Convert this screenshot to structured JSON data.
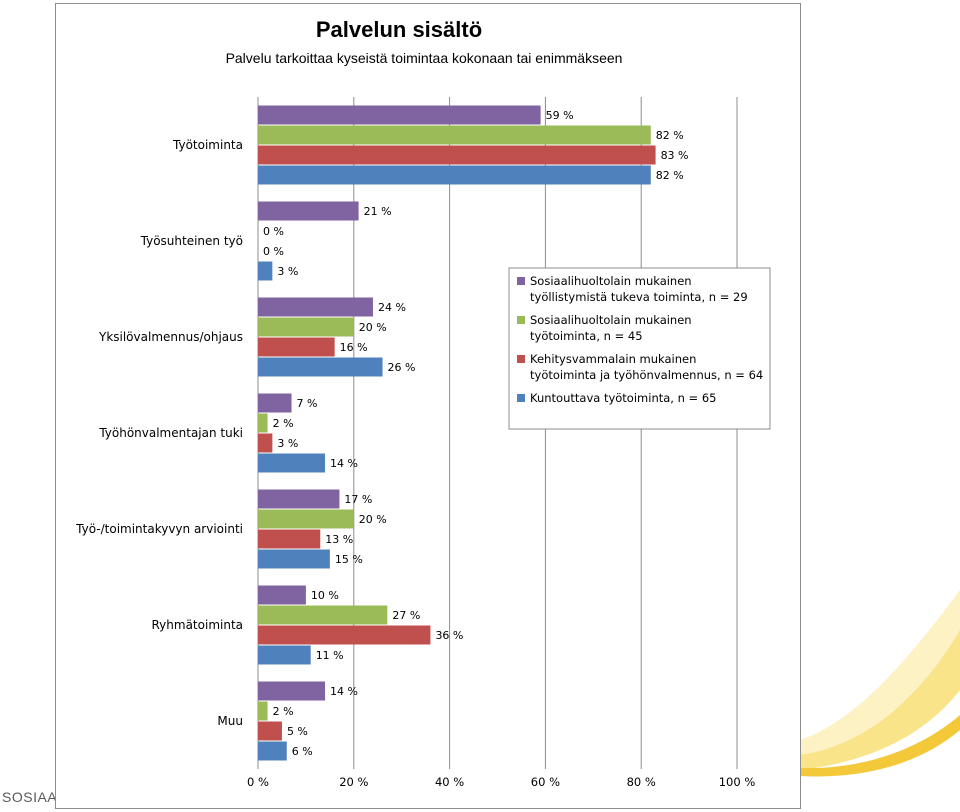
{
  "footer": {
    "text": "SOSIAALI"
  },
  "colors": {
    "decor_light": "#fdf2c4",
    "decor_mid": "#f9e48a",
    "decor_dark": "#f3c93a",
    "grid": "#8c8c8c",
    "frame": "#8c8c8c"
  },
  "chart_data": {
    "type": "bar",
    "orientation": "horizontal",
    "title": "Palvelun sisältö",
    "subtitle": "Palvelu tarkoittaa kyseistä toimintaa kokonaan tai enimmäkseen",
    "categories": [
      "Työtoiminta",
      "Työsuhteinen työ",
      "Yksilövalmennus/ohjaus",
      "Työhönvalmentajan tuki",
      "Työ-/toimintakyvyn arviointi",
      "Ryhmätoiminta",
      "Muu"
    ],
    "series": [
      {
        "name": "Sosiaalihuoltolain mukainen työllistymistä tukeva toiminta, n = 29",
        "legend_lines": [
          "Sosiaalihuoltolain mukainen",
          "työllistymistä tukeva toiminta, n = 29"
        ],
        "color": "#8064a2",
        "values": [
          59,
          21,
          24,
          7,
          17,
          10,
          14
        ],
        "labels": [
          "59 %",
          "21 %",
          "24 %",
          "7 %",
          "17 %",
          "10 %",
          "14 %"
        ]
      },
      {
        "name": "Sosiaalihuoltolain mukainen työtoiminta, n = 45",
        "legend_lines": [
          "Sosiaalihuoltolain mukainen",
          "työtoiminta, n = 45"
        ],
        "color": "#9bbb59",
        "values": [
          82,
          0,
          20,
          2,
          20,
          27,
          2
        ],
        "labels": [
          "82 %",
          "0 %",
          "20 %",
          "2 %",
          "20 %",
          "27 %",
          "2 %"
        ]
      },
      {
        "name": "Kehitysvammalain mukainen työtoiminta ja työhönvalmennus, n = 64",
        "legend_lines": [
          "Kehitysvammalain mukainen",
          "työtoiminta ja työhönvalmennus, n = 64"
        ],
        "color": "#c0504d",
        "values": [
          83,
          0,
          16,
          3,
          13,
          36,
          5
        ],
        "labels": [
          "83 %",
          "0 %",
          "16 %",
          "3 %",
          "13 %",
          "36 %",
          "5 %"
        ]
      },
      {
        "name": "Kuntouttava työtoiminta, n = 65",
        "legend_lines": [
          "Kuntouttava työtoiminta, n = 65"
        ],
        "color": "#4f81bd",
        "values": [
          82,
          3,
          26,
          14,
          15,
          11,
          6
        ],
        "labels": [
          "82 %",
          "3 %",
          "26 %",
          "14 %",
          "15 %",
          "11 %",
          "6 %"
        ]
      }
    ],
    "xlim": [
      0,
      100
    ],
    "x_ticks": [
      0,
      20,
      40,
      60,
      80,
      100
    ],
    "x_tick_labels": [
      "0 %",
      "20 %",
      "40 %",
      "60 %",
      "80 %",
      "100 %"
    ],
    "xlabel": "",
    "ylabel": "",
    "grid": true,
    "legend_position": "right"
  }
}
